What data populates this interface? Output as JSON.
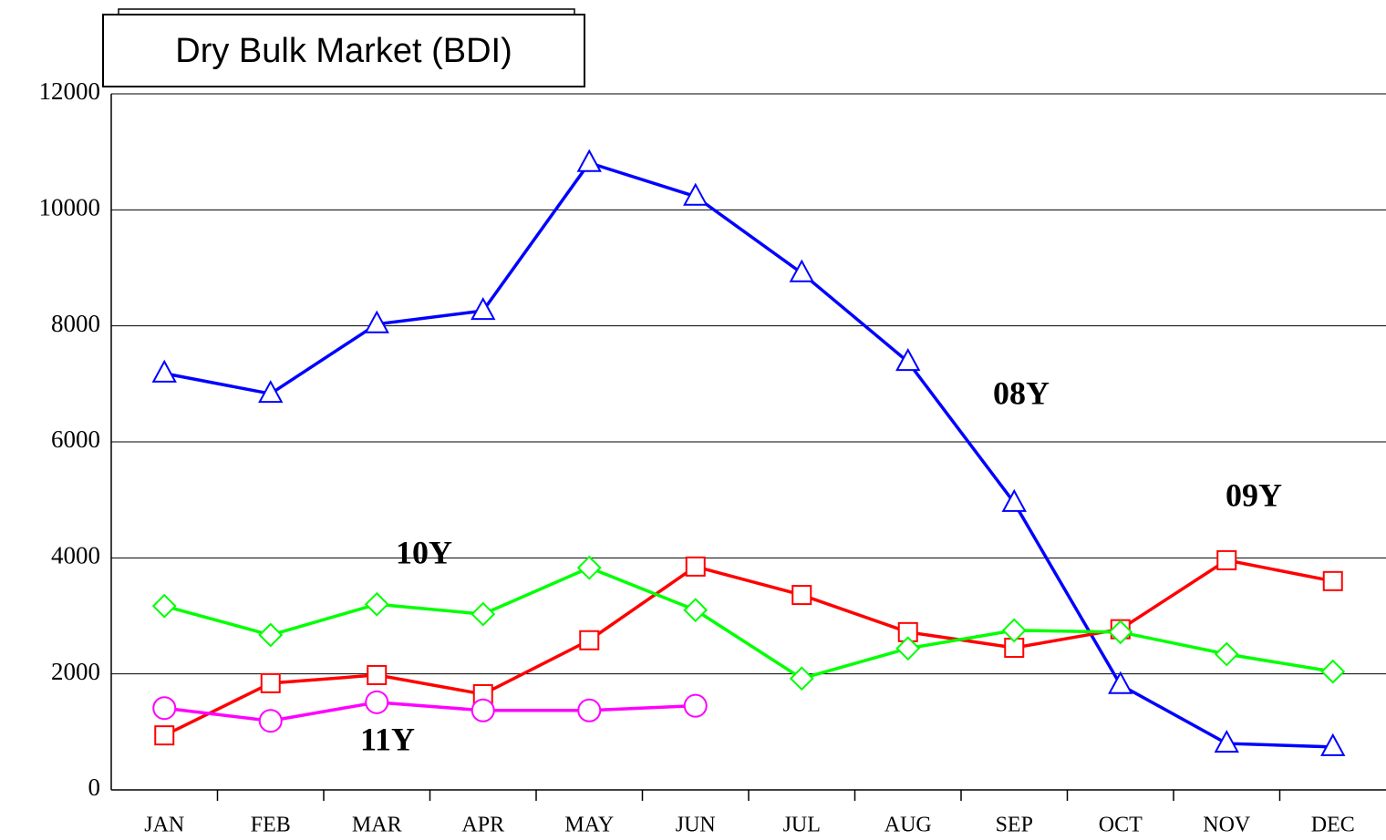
{
  "chart_data": {
    "type": "line",
    "title": "Dry Bulk Market (BDI)",
    "categories": [
      "JAN",
      "FEB",
      "MAR",
      "APR",
      "MAY",
      "JUN",
      "JUL",
      "AUG",
      "SEP",
      "OCT",
      "NOV",
      "DEC"
    ],
    "series": [
      {
        "name": "08Y",
        "color": "#0000ff",
        "marker": "triangle",
        "values": [
          7180,
          6830,
          8030,
          8260,
          10810,
          10230,
          8910,
          7380,
          4950,
          1810,
          800,
          740
        ]
      },
      {
        "name": "09Y",
        "color": "#ff0000",
        "marker": "square",
        "values": [
          940,
          1840,
          1980,
          1650,
          2580,
          3850,
          3360,
          2720,
          2450,
          2770,
          3960,
          3600
        ]
      },
      {
        "name": "10Y",
        "color": "#00ff00",
        "marker": "diamond",
        "values": [
          3170,
          2670,
          3200,
          3030,
          3830,
          3100,
          1920,
          2440,
          2750,
          2720,
          2340,
          2040
        ]
      },
      {
        "name": "11Y",
        "color": "#ff00ff",
        "marker": "circle",
        "values": [
          1410,
          1190,
          1510,
          1370,
          1370,
          1450,
          null,
          null,
          null,
          null,
          null,
          null
        ]
      }
    ],
    "ylim": [
      0,
      12000
    ],
    "yticks": [
      0,
      2000,
      4000,
      6000,
      8000,
      10000,
      12000
    ],
    "grid": true
  }
}
